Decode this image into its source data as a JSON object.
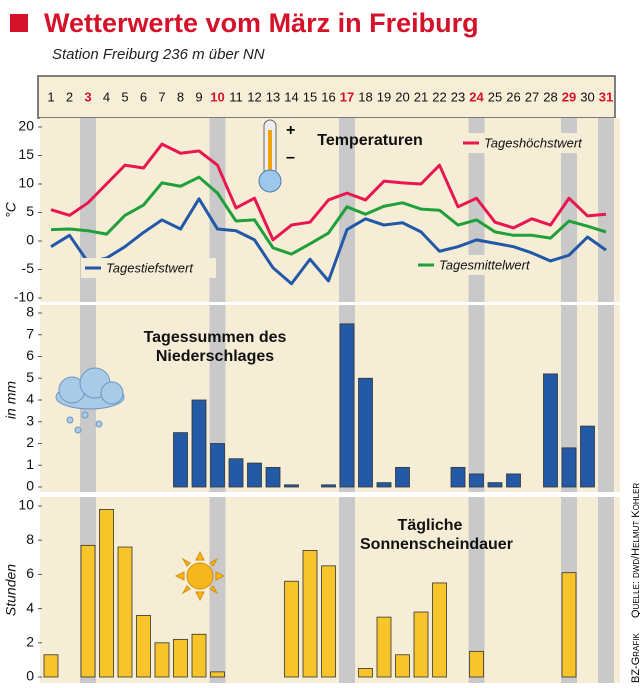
{
  "title": "Wetterwerte vom März in Freiburg",
  "subtitle": "Station Freiburg 236 m über NN",
  "days": [
    1,
    2,
    3,
    4,
    5,
    6,
    7,
    8,
    9,
    10,
    11,
    12,
    13,
    14,
    15,
    16,
    17,
    18,
    19,
    20,
    21,
    22,
    23,
    24,
    25,
    26,
    27,
    28,
    29,
    30,
    31
  ],
  "highlight_days": [
    3,
    10,
    17,
    24,
    29,
    31
  ],
  "credit": "BZ-Grafik",
  "source": "Quelle: dwd/Helmut Kohler",
  "chart_data": [
    {
      "type": "line",
      "title": "Temperaturen",
      "ylabel": "°C",
      "ylim": [
        -10,
        20
      ],
      "yticks": [
        -10,
        -5,
        0,
        5,
        10,
        15,
        20
      ],
      "series": [
        {
          "name": "Tageshöchstwert",
          "color": "#e8174f",
          "values": [
            5.5,
            4.5,
            6.7,
            10,
            13.3,
            12.8,
            17,
            15.4,
            15.8,
            13.3,
            5.8,
            7.5,
            0.2,
            2.8,
            3.3,
            7.2,
            8.4,
            7.2,
            10.5,
            10.2,
            10,
            13.3,
            6,
            7.5,
            3.3,
            2.3,
            3.9,
            2.8,
            7.5,
            4.4,
            4.7
          ]
        },
        {
          "name": "Tagesmittelwert",
          "color": "#1fa03a",
          "values": [
            2,
            2.1,
            1.8,
            1.2,
            4.5,
            6.3,
            10.2,
            9.6,
            11.2,
            8.4,
            3.5,
            3.7,
            -1.2,
            -2.3,
            -0.5,
            1.4,
            6,
            4.7,
            6.1,
            6.7,
            5.6,
            5.4,
            2.8,
            3.7,
            1.6,
            1,
            1,
            0.5,
            3.5,
            2.6,
            1.6
          ]
        },
        {
          "name": "Tagestiefstwert",
          "color": "#2358a8",
          "values": [
            -1,
            1,
            -3.7,
            -3,
            -1,
            1.5,
            3.7,
            2.1,
            7.4,
            2.1,
            1.8,
            0.2,
            -4.7,
            -7.5,
            -3.2,
            -7,
            2,
            3.9,
            2.8,
            3.2,
            1.6,
            -1.8,
            -1,
            0.2,
            -0.4,
            -1,
            -2.1,
            -3.5,
            -2.5,
            0.7,
            -1.6
          ]
        }
      ]
    },
    {
      "type": "bar",
      "title": "Tagessummen des Niederschlages",
      "ylabel": "in mm",
      "color": "#2459a6",
      "ylim": [
        0,
        8
      ],
      "yticks": [
        0,
        1,
        2,
        3,
        4,
        5,
        6,
        7,
        8
      ],
      "values": [
        0,
        0,
        0,
        0,
        0,
        0,
        0,
        2.5,
        4.0,
        2.0,
        1.3,
        1.1,
        0.9,
        0.1,
        0,
        0.1,
        7.5,
        5.0,
        0.2,
        0.9,
        0,
        0,
        0.9,
        0.6,
        0.2,
        0.6,
        0,
        5.2,
        1.8,
        2.8,
        0
      ]
    },
    {
      "type": "bar",
      "title": "Tägliche Sonnenscheindauer",
      "ylabel": "Stunden",
      "color": "#f7c52a",
      "ylim": [
        0,
        10
      ],
      "yticks": [
        0,
        2,
        4,
        6,
        8,
        10
      ],
      "values": [
        1.3,
        0,
        7.7,
        9.8,
        7.6,
        3.6,
        2.0,
        2.2,
        2.5,
        0.3,
        0,
        0,
        0,
        5.6,
        7.4,
        6.5,
        0,
        0.5,
        3.5,
        1.3,
        3.8,
        5.5,
        0,
        1.5,
        0,
        0,
        0,
        0,
        6.1,
        0,
        0
      ]
    }
  ]
}
